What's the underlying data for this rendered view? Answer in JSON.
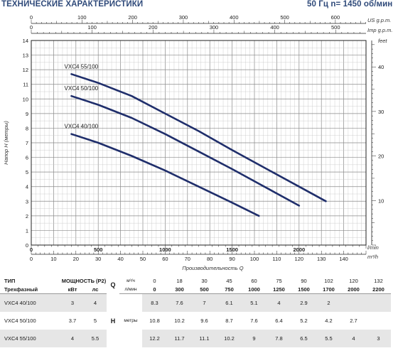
{
  "header": {
    "title": "ТЕХНИЧЕСКИЕ ХАРАКТЕРИСТИКИ",
    "speed": "50 Гц  n= 1450 об/мин"
  },
  "chart_data": {
    "type": "line",
    "ylabel": "Напор H (метры)",
    "xlabel": "Производительность Q",
    "ylim": [
      0,
      14
    ],
    "xlim_m3h": [
      0,
      150
    ],
    "yticks": [
      "0",
      "1",
      "2",
      "3",
      "4",
      "5",
      "6",
      "7",
      "8",
      "9",
      "10",
      "11",
      "12",
      "13",
      "14"
    ],
    "feet_ticks": [
      "10",
      "20",
      "30",
      "40"
    ],
    "feet_label": "feet",
    "top_axes": [
      {
        "unit": "US g.p.m.",
        "ticks": [
          "0",
          "100",
          "200",
          "300",
          "400",
          "500",
          "600"
        ]
      },
      {
        "unit": "Imp g.p.m.",
        "ticks": [
          "0",
          "100",
          "200",
          "300",
          "400",
          "500"
        ]
      }
    ],
    "bottom_axes": [
      {
        "unit": "l/min",
        "ticks": [
          "0",
          "500",
          "1000",
          "1500",
          "2000"
        ]
      },
      {
        "unit": "m³/h",
        "ticks": [
          "0",
          "10",
          "20",
          "30",
          "40",
          "50",
          "60",
          "70",
          "80",
          "90",
          "100",
          "110",
          "120",
          "130",
          "140"
        ]
      }
    ],
    "series": [
      {
        "name": "VXC4 40/100",
        "x": [
          18,
          30,
          45,
          60,
          75,
          90,
          102
        ],
        "y": [
          7.6,
          7,
          6.1,
          5.1,
          4,
          2.9,
          2
        ]
      },
      {
        "name": "VXC4 50/100",
        "x": [
          18,
          30,
          45,
          60,
          75,
          90,
          102,
          120
        ],
        "y": [
          10.2,
          9.6,
          8.7,
          7.6,
          6.4,
          5.2,
          4.2,
          2.7
        ]
      },
      {
        "name": "VXC4 55/100",
        "x": [
          18,
          30,
          45,
          60,
          75,
          90,
          102,
          120,
          132
        ],
        "y": [
          11.7,
          11.1,
          10.2,
          9,
          7.8,
          6.5,
          5.5,
          4,
          3
        ]
      }
    ]
  },
  "table": {
    "type_label": "ТИП",
    "power_label": "МОЩНОСТЬ (P2)",
    "phase_label": "Трехфазный",
    "kw_label": "кВт",
    "hp_label": "лс",
    "q_label": "Q",
    "q_unit_m3h": "м³/ч",
    "q_unit_lmin": "л/мин",
    "h_label": "H",
    "h_unit": "метры",
    "q_m3h": [
      "0",
      "18",
      "30",
      "45",
      "60",
      "75",
      "90",
      "102",
      "120",
      "132"
    ],
    "q_lmin": [
      "0",
      "300",
      "500",
      "750",
      "1000",
      "1250",
      "1500",
      "1700",
      "2000",
      "2200"
    ],
    "rows": [
      {
        "model": "VXC4 40/100",
        "kw": "3",
        "hp": "4",
        "h": [
          "8.3",
          "7.6",
          "7",
          "6.1",
          "5.1",
          "4",
          "2.9",
          "2",
          "",
          ""
        ]
      },
      {
        "model": "VXC4 50/100",
        "kw": "3.7",
        "hp": "5",
        "h": [
          "10.8",
          "10.2",
          "9.6",
          "8.7",
          "7.6",
          "6.4",
          "5.2",
          "4.2",
          "2.7",
          ""
        ]
      },
      {
        "model": "VXC4 55/100",
        "kw": "4",
        "hp": "5.5",
        "h": [
          "12.2",
          "11.7",
          "11.1",
          "10.2",
          "9",
          "7.8",
          "6.5",
          "5.5",
          "4",
          "3"
        ]
      }
    ]
  },
  "colors": {
    "curve": "#1f2e6b",
    "grid": "#9a9a9a",
    "header": "#2f4a7a",
    "shade": "#e6e6e6"
  }
}
